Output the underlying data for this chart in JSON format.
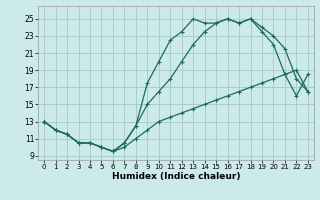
{
  "xlabel": "Humidex (Indice chaleur)",
  "bg_color": "#cceaea",
  "grid_color": "#aacccc",
  "line_color": "#1a6b5a",
  "xlim": [
    -0.5,
    23.5
  ],
  "ylim": [
    8.5,
    26.5
  ],
  "xticks": [
    0,
    1,
    2,
    3,
    4,
    5,
    6,
    7,
    8,
    9,
    10,
    11,
    12,
    13,
    14,
    15,
    16,
    17,
    18,
    19,
    20,
    21,
    22,
    23
  ],
  "yticks": [
    9,
    11,
    13,
    15,
    17,
    19,
    21,
    23,
    25
  ],
  "line1_x": [
    0,
    1,
    2,
    3,
    4,
    5,
    6,
    7,
    8,
    9,
    10,
    11,
    12,
    13,
    14,
    15,
    16,
    17,
    18,
    19,
    20,
    21,
    22,
    23
  ],
  "line1_y": [
    13,
    12,
    11.5,
    10.5,
    10.5,
    10,
    9.5,
    10.5,
    12.5,
    17.5,
    20,
    22.5,
    23.5,
    25,
    24.5,
    24.5,
    25,
    24.5,
    25,
    23.5,
    22,
    18.5,
    16,
    18.5
  ],
  "line2_x": [
    0,
    1,
    2,
    3,
    4,
    5,
    6,
    7,
    8,
    9,
    10,
    11,
    12,
    13,
    14,
    15,
    16,
    17,
    18,
    19,
    20,
    21,
    22,
    23
  ],
  "line2_y": [
    13,
    12,
    11.5,
    10.5,
    10.5,
    10,
    9.5,
    10.5,
    12.5,
    15,
    16.5,
    18,
    20,
    22,
    23.5,
    24.5,
    25,
    24.5,
    25,
    24,
    23,
    21.5,
    18,
    16.5
  ],
  "line3_x": [
    0,
    1,
    2,
    3,
    4,
    5,
    6,
    7,
    8,
    9,
    10,
    11,
    12,
    13,
    14,
    15,
    16,
    17,
    18,
    19,
    20,
    21,
    22,
    23
  ],
  "line3_y": [
    13,
    12,
    11.5,
    10.5,
    10.5,
    10,
    9.5,
    10,
    11,
    12,
    13,
    13.5,
    14,
    14.5,
    15,
    15.5,
    16,
    16.5,
    17,
    17.5,
    18,
    18.5,
    19,
    16.5
  ]
}
